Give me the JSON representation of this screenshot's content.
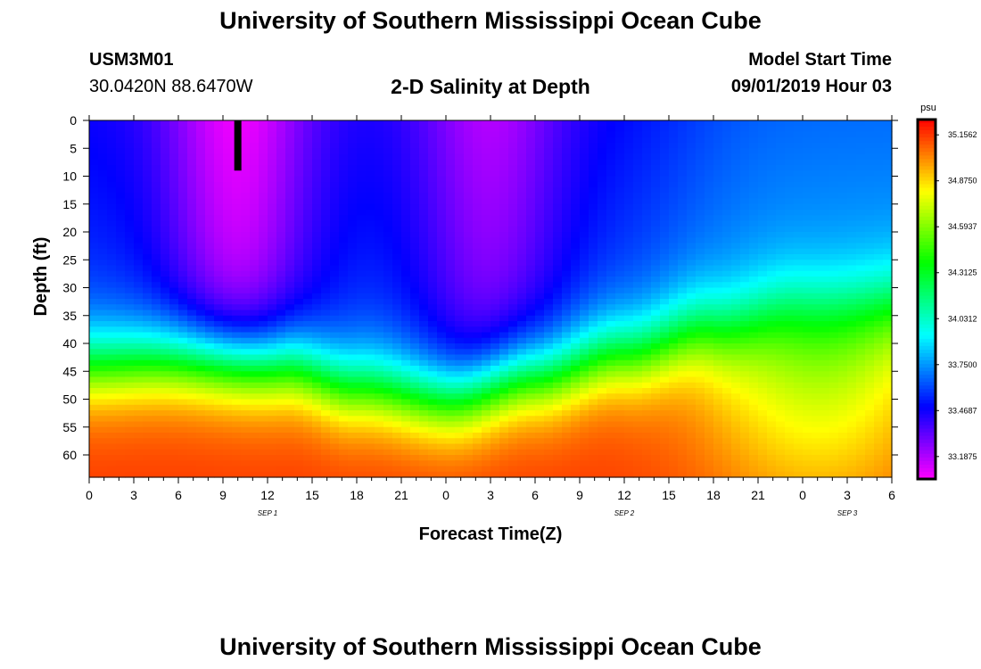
{
  "header": {
    "title": "University of Southern Mississippi Ocean Cube",
    "station_id": "USM3M01",
    "location": "30.0420N 88.6470W",
    "plot_title": "2-D Salinity at Depth",
    "model_start_label": "Model Start Time",
    "model_start_value": "09/01/2019 Hour 03"
  },
  "footer": {
    "title": "University of Southern Mississippi Ocean Cube"
  },
  "chart_data": {
    "type": "heatmap",
    "title": "2-D Salinity at Depth",
    "xlabel": "Forecast Time(Z)",
    "ylabel": "Depth (ft)",
    "x_ticks": [
      "0",
      "3",
      "6",
      "9",
      "12",
      "15",
      "18",
      "21",
      "0",
      "3",
      "6",
      "9",
      "12",
      "15",
      "18",
      "21",
      "0",
      "3",
      "6"
    ],
    "x_range_hours": [
      0,
      54
    ],
    "date_labels": [
      {
        "text": "SEP 1",
        "hour": 12
      },
      {
        "text": "SEP 2",
        "hour": 36
      },
      {
        "text": "SEP 3",
        "hour": 51
      }
    ],
    "y_ticks": [
      0,
      5,
      10,
      15,
      20,
      25,
      30,
      35,
      40,
      45,
      50,
      55,
      60
    ],
    "ylim": [
      0,
      64
    ],
    "current_time_marker": {
      "hour": 10,
      "depth_from": 0,
      "depth_to": 9
    },
    "colorbar": {
      "unit": "psu",
      "min": 33.05,
      "max": 35.25,
      "labels": [
        "35.1562",
        "34.8750",
        "34.5937",
        "34.3125",
        "34.0312",
        "33.7500",
        "33.4687",
        "33.1875"
      ]
    },
    "salinity_model": {
      "surface_low_psu": 33.05,
      "halocline_depth_ft": [
        {
          "hour": 0,
          "depth": 34
        },
        {
          "hour": 6,
          "depth": 33
        },
        {
          "hour": 13,
          "depth": 34
        },
        {
          "hour": 18,
          "depth": 38
        },
        {
          "hour": 24,
          "depth": 40
        },
        {
          "hour": 30,
          "depth": 36
        },
        {
          "hour": 36,
          "depth": 32
        },
        {
          "hour": 42,
          "depth": 27
        },
        {
          "hour": 48,
          "depth": 22
        },
        {
          "hour": 54,
          "depth": 22
        }
      ],
      "deep_psu": 35.15
    }
  }
}
